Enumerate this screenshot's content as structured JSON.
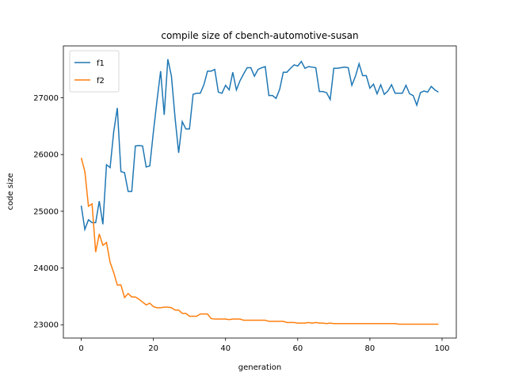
{
  "chart_data": {
    "type": "line",
    "title": "compile size of cbench-automotive-susan",
    "xlabel": "generation",
    "ylabel": "code size",
    "x": [
      0,
      1,
      2,
      3,
      4,
      5,
      6,
      7,
      8,
      9,
      10,
      11,
      12,
      13,
      14,
      15,
      16,
      17,
      18,
      19,
      20,
      21,
      22,
      23,
      24,
      25,
      26,
      27,
      28,
      29,
      30,
      31,
      32,
      33,
      34,
      35,
      36,
      37,
      38,
      39,
      40,
      41,
      42,
      43,
      44,
      45,
      46,
      47,
      48,
      49,
      50,
      51,
      52,
      53,
      54,
      55,
      56,
      57,
      58,
      59,
      60,
      61,
      62,
      63,
      64,
      65,
      66,
      67,
      68,
      69,
      70,
      71,
      72,
      73,
      74,
      75,
      76,
      77,
      78,
      79,
      80,
      81,
      82,
      83,
      84,
      85,
      86,
      87,
      88,
      89,
      90,
      91,
      92,
      93,
      94,
      95,
      96,
      97,
      98,
      99
    ],
    "series": [
      {
        "name": "f1",
        "color": "#1f77b4",
        "values": [
          25100,
          24680,
          24850,
          24800,
          24800,
          25180,
          24770,
          25820,
          25770,
          26400,
          26820,
          25700,
          25680,
          25350,
          25350,
          26150,
          26160,
          26150,
          25780,
          25800,
          26400,
          26950,
          27470,
          26700,
          27680,
          27380,
          26650,
          26030,
          26580,
          26450,
          26450,
          27060,
          27080,
          27080,
          27230,
          27470,
          27470,
          27500,
          27100,
          27080,
          27220,
          27140,
          27450,
          27140,
          27300,
          27420,
          27530,
          27530,
          27380,
          27500,
          27530,
          27550,
          27040,
          27040,
          26990,
          27150,
          27450,
          27450,
          27520,
          27580,
          27560,
          27640,
          27520,
          27550,
          27540,
          27530,
          27110,
          27110,
          27090,
          26970,
          27520,
          27520,
          27530,
          27540,
          27530,
          27220,
          27380,
          27600,
          27390,
          27390,
          27170,
          27240,
          27070,
          27230,
          27060,
          27120,
          27230,
          27080,
          27080,
          27080,
          27220,
          27070,
          27040,
          26870,
          27090,
          27120,
          27100,
          27200,
          27140,
          27100
        ]
      },
      {
        "name": "f2",
        "color": "#ff7f0e",
        "values": [
          25940,
          25700,
          25090,
          25130,
          24280,
          24600,
          24400,
          24450,
          24100,
          23920,
          23700,
          23700,
          23480,
          23550,
          23490,
          23490,
          23450,
          23400,
          23350,
          23380,
          23320,
          23300,
          23300,
          23310,
          23310,
          23300,
          23260,
          23260,
          23200,
          23200,
          23150,
          23150,
          23150,
          23190,
          23190,
          23190,
          23110,
          23100,
          23100,
          23100,
          23100,
          23090,
          23100,
          23100,
          23100,
          23080,
          23080,
          23080,
          23080,
          23080,
          23080,
          23080,
          23060,
          23060,
          23060,
          23060,
          23060,
          23040,
          23040,
          23040,
          23030,
          23030,
          23030,
          23040,
          23030,
          23040,
          23030,
          23030,
          23020,
          23030,
          23020,
          23020,
          23020,
          23020,
          23020,
          23020,
          23020,
          23020,
          23020,
          23020,
          23020,
          23020,
          23020,
          23020,
          23020,
          23020,
          23020,
          23020,
          23010,
          23010,
          23010,
          23010,
          23010,
          23010,
          23010,
          23010,
          23010,
          23010,
          23010,
          23010
        ]
      }
    ],
    "xlim": [
      -4.95,
      103.95
    ],
    "ylim": [
      22766,
      27914
    ],
    "xticks": [
      0,
      20,
      40,
      60,
      80,
      100
    ],
    "yticks": [
      23000,
      24000,
      25000,
      26000,
      27000
    ],
    "legend": "upper left"
  }
}
